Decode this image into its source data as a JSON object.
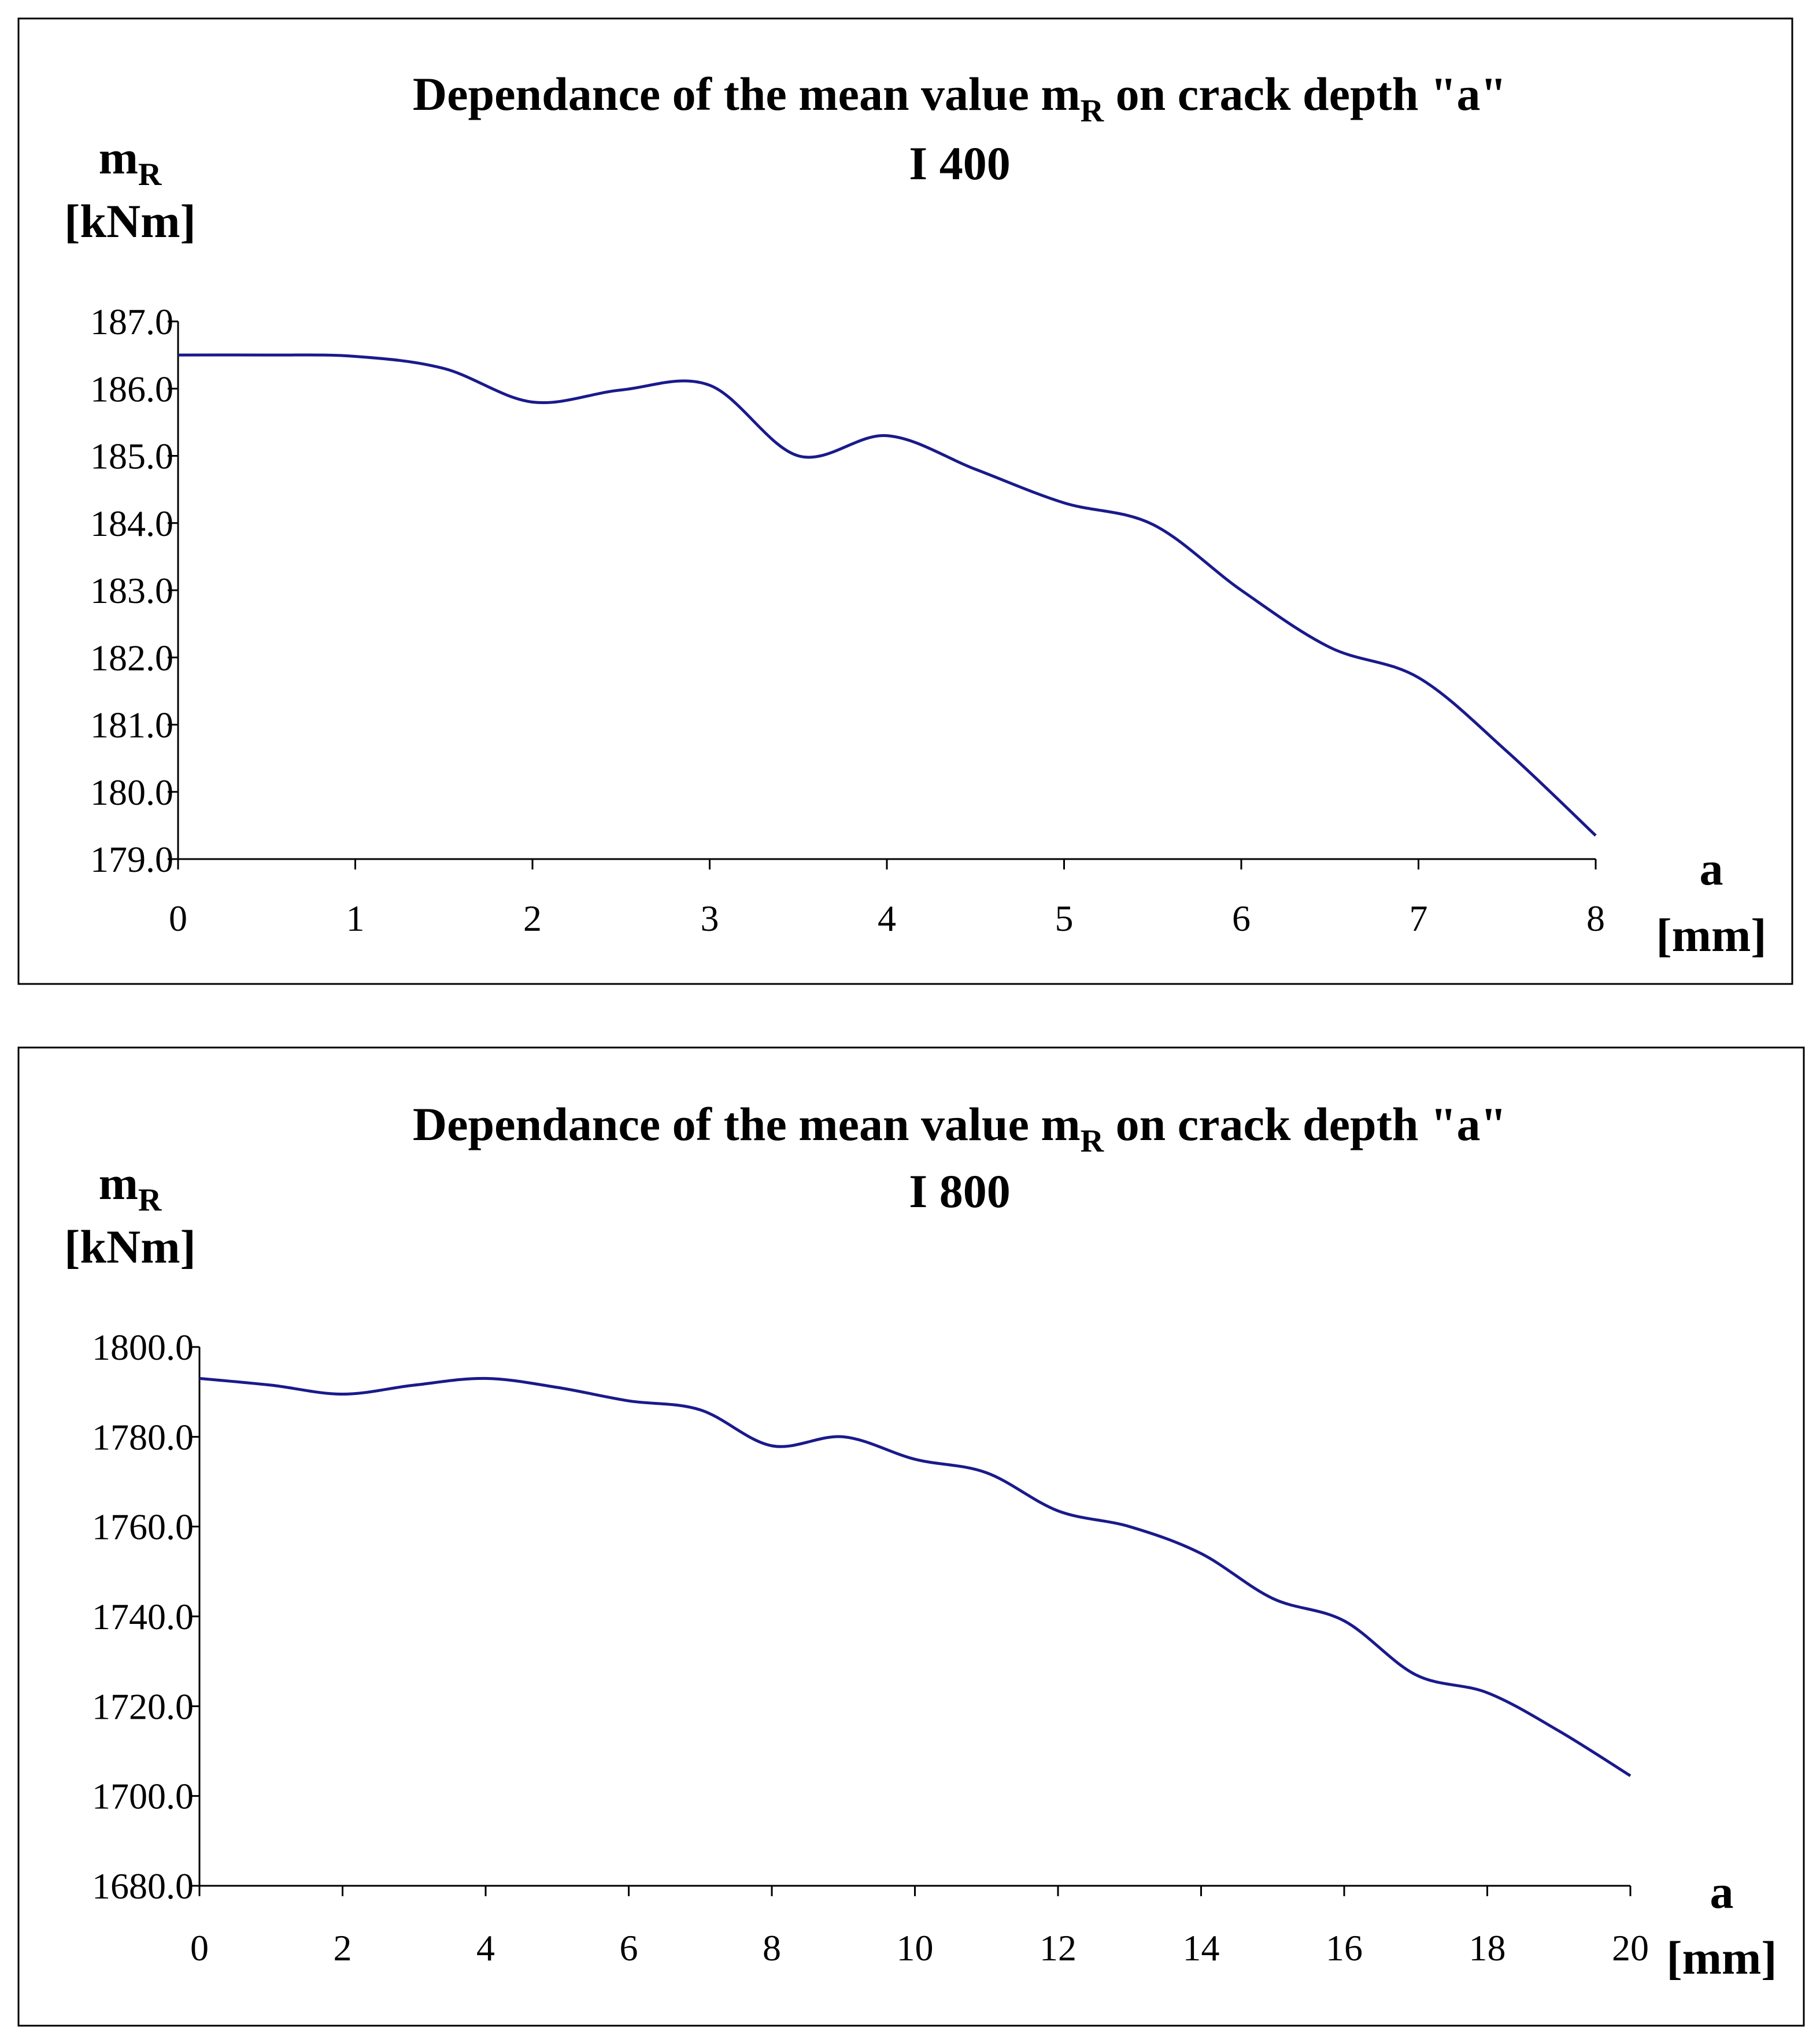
{
  "colors": {
    "line": "#1a1a8c",
    "axis": "#000000",
    "frame": "#000000",
    "background": "#ffffff"
  },
  "chart_data": [
    {
      "type": "line",
      "title": "Dependance of the mean value m",
      "title_subscript": "R",
      "title_suffix": " on crack depth \"a\"",
      "subtitle": "I 400",
      "ylabel": "m",
      "ylabel_subscript": "R",
      "ylabel_unit": "[kNm]",
      "xlabel": "a",
      "xlabel_unit": "[mm]",
      "ylim": [
        179.0,
        187.0
      ],
      "xlim": [
        0,
        8
      ],
      "yticks": [
        "187.0",
        "186.0",
        "185.0",
        "184.0",
        "183.0",
        "182.0",
        "181.0",
        "180.0",
        "179.0"
      ],
      "xticks": [
        "0",
        "1",
        "2",
        "3",
        "4",
        "5",
        "6",
        "7",
        "8"
      ],
      "x": [
        0,
        0.5,
        1,
        1.5,
        2,
        2.5,
        3,
        3.5,
        4,
        4.5,
        5,
        5.5,
        6,
        6.5,
        7,
        7.5,
        8
      ],
      "values": [
        186.5,
        186.5,
        186.48,
        186.3,
        185.8,
        185.98,
        186.05,
        185.0,
        185.3,
        184.8,
        184.3,
        183.98,
        183.0,
        182.15,
        181.7,
        180.6,
        179.35
      ]
    },
    {
      "type": "line",
      "title": "Dependance of the mean value m",
      "title_subscript": "R",
      "title_suffix": " on crack depth \"a\"",
      "subtitle": "I 800",
      "ylabel": "m",
      "ylabel_subscript": "R",
      "ylabel_unit": "[kNm]",
      "xlabel": "a",
      "xlabel_unit": "[mm]",
      "ylim": [
        1680.0,
        1800.0
      ],
      "xlim": [
        0,
        20
      ],
      "yticks": [
        "1800.0",
        "1780.0",
        "1760.0",
        "1740.0",
        "1720.0",
        "1700.0",
        "1680.0"
      ],
      "xticks": [
        "0",
        "2",
        "4",
        "6",
        "8",
        "10",
        "12",
        "14",
        "16",
        "18",
        "20"
      ],
      "x": [
        0,
        1,
        2,
        3,
        4,
        5,
        6,
        7,
        8,
        9,
        10,
        11,
        12,
        13,
        14,
        15,
        16,
        17,
        18,
        19,
        20
      ],
      "values": [
        1793.0,
        1791.5,
        1789.5,
        1791.5,
        1793.0,
        1791.0,
        1788.0,
        1786.0,
        1778.0,
        1780.0,
        1775.0,
        1772.0,
        1763.5,
        1760.0,
        1754.0,
        1744.0,
        1739.0,
        1727.0,
        1723.0,
        1714.5,
        1704.5
      ]
    }
  ]
}
